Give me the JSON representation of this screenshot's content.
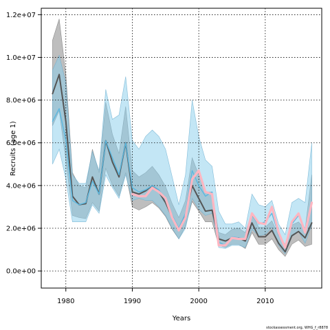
{
  "chart_data": {
    "type": "line",
    "title": "",
    "xlabel": "Years",
    "ylabel": "Recruits (age 1)",
    "credit": "stockassessment.org, WHG_f_r8878",
    "xlim": [
      1976.3,
      2018.5
    ],
    "ylim": [
      -800000,
      12300000
    ],
    "x_ticks": [
      1980,
      1990,
      2000,
      2010
    ],
    "x_tick_labels": [
      "1980",
      "1990",
      "2000",
      "2010"
    ],
    "y_ticks": [
      0,
      2000000,
      4000000,
      6000000,
      8000000,
      10000000,
      12000000
    ],
    "y_tick_labels": [
      "0.0e+00",
      "2.0e+06",
      "4.0e+06",
      "6.0e+06",
      "8.0e+06",
      "1.0e+07",
      "1.2e+07"
    ],
    "grid": true,
    "colors": {
      "grey_band": "#a8a8a8",
      "grey_line": "#555555",
      "blue_band": "#87ceeb",
      "blue_line": "#5bb8e0",
      "pink_line": "#ffb6c1"
    },
    "series": [
      {
        "years": [
          1978,
          1979,
          1980,
          1981,
          1982,
          1983,
          1984,
          1985,
          1986,
          1987,
          1988,
          1989,
          1990,
          1991,
          1992,
          1993,
          1994,
          1995,
          1996,
          1997,
          1998,
          1999,
          2000,
          2001,
          2002,
          2003,
          2004,
          2005,
          2006,
          2007,
          2008,
          2009,
          2010,
          2011,
          2012,
          2013,
          2014,
          2015,
          2016,
          2017
        ],
        "values": [
          8300000,
          9200000,
          7000000,
          3500000,
          3100000,
          3150000,
          4400000,
          3600000,
          6100000,
          5100000,
          4400000,
          6000000,
          3700000,
          3600000,
          3750000,
          4000000,
          3700000,
          3200000,
          2500000,
          1900000,
          2600000,
          4000000,
          3400000,
          2800000,
          2850000,
          1500000,
          1400000,
          1550000,
          1550000,
          1400000,
          2250000,
          1600000,
          1600000,
          1900000,
          1300000,
          900000,
          1650000,
          1850000,
          1550000,
          2250000
        ],
        "lower": [
          6800000,
          7500000,
          5200000,
          2600000,
          2500000,
          2450000,
          3200000,
          2800000,
          4800000,
          4000000,
          3500000,
          4600000,
          3000000,
          2850000,
          3000000,
          3200000,
          2950000,
          2550000,
          1950000,
          1500000,
          2100000,
          3250000,
          2800000,
          2300000,
          2300000,
          1200000,
          1100000,
          1250000,
          1250000,
          1050000,
          1800000,
          1250000,
          1250000,
          1500000,
          1000000,
          680000,
          1250000,
          1450000,
          1150000,
          1250000
        ],
        "upper": [
          10800000,
          11800000,
          9200000,
          4600000,
          4000000,
          3900000,
          5700000,
          4600000,
          7900000,
          6400000,
          5500000,
          7700000,
          4700000,
          4400000,
          4600000,
          4900000,
          4500000,
          3950000,
          3150000,
          2500000,
          3300000,
          5300000,
          4500000,
          3700000,
          3700000,
          1800000,
          1700000,
          1950000,
          2000000,
          1800000,
          2700000,
          2050000,
          2050000,
          2350000,
          1650000,
          1250000,
          2150000,
          2300000,
          1950000,
          4500000
        ]
      },
      {
        "years": [
          1978,
          1979,
          1980,
          1981,
          1982,
          1983,
          1984,
          1985,
          1986,
          1987,
          1988,
          1989,
          1990,
          1991,
          1992,
          1993,
          1994,
          1995,
          1996,
          1997,
          1998,
          1999,
          2000,
          2001,
          2002,
          2003,
          2004,
          2005,
          2006,
          2007,
          2008,
          2009,
          2010,
          2011,
          2012,
          2013,
          2014,
          2015,
          2016,
          2017
        ],
        "values": [
          7000000,
          7600000,
          6100000,
          3300000,
          3100000,
          3200000,
          4200000,
          3600000,
          6100000,
          5300000,
          4500000,
          6000000,
          3900000,
          3700000,
          3800000,
          4000000,
          3800000,
          3300000,
          2600000,
          2000000,
          2700000,
          4700000,
          4000000,
          3500000,
          3700000,
          1350000,
          1200000,
          1600000,
          1550000,
          1500000,
          2600000,
          2200000,
          2300000,
          2700000,
          1700000,
          1100000,
          2200000,
          2600000,
          1950000,
          3200000
        ],
        "lower": [
          5000000,
          5700000,
          4300000,
          2300000,
          2300000,
          2300000,
          3100000,
          2700000,
          4500000,
          3900000,
          3400000,
          4500000,
          3300000,
          3400000,
          3300000,
          3300000,
          3000000,
          2600000,
          2000000,
          1500000,
          2000000,
          3400000,
          2900000,
          2600000,
          2700000,
          1100000,
          1050000,
          1200000,
          1200000,
          1100000,
          1950000,
          1650000,
          1700000,
          2050000,
          1200000,
          800000,
          1600000,
          1850000,
          1300000,
          2150000
        ],
        "upper": [
          9400000,
          10100000,
          8800000,
          4500000,
          4100000,
          4100000,
          5600000,
          4700000,
          8500000,
          7100000,
          7300000,
          9100000,
          6100000,
          5700000,
          6300000,
          6600000,
          6300000,
          5700000,
          4400000,
          3100000,
          4500000,
          8000000,
          6300000,
          5200000,
          4900000,
          2800000,
          2200000,
          2200000,
          2300000,
          2000000,
          3600000,
          3100000,
          3000000,
          3300000,
          2200000,
          1700000,
          3200000,
          3400000,
          3200000,
          6000000
        ]
      },
      {
        "years": [
          1990,
          1991,
          1992,
          1993,
          1994,
          1995,
          1996,
          1997,
          1998,
          1999,
          2000,
          2001,
          2002,
          2003,
          2004,
          2005,
          2006,
          2007,
          2008,
          2009,
          2010,
          2011,
          2012,
          2013,
          2014,
          2015,
          2016,
          2017
        ],
        "values": [
          3600000,
          3500000,
          3500000,
          3900000,
          3700000,
          3400000,
          2500000,
          1900000,
          2500000,
          4300000,
          4700000,
          3700000,
          3600000,
          1200000,
          1200000,
          1550000,
          1500000,
          1500000,
          2700000,
          2250000,
          2200000,
          3000000,
          1800000,
          1100000,
          2300000,
          2700000,
          1800000,
          3200000
        ]
      }
    ]
  }
}
